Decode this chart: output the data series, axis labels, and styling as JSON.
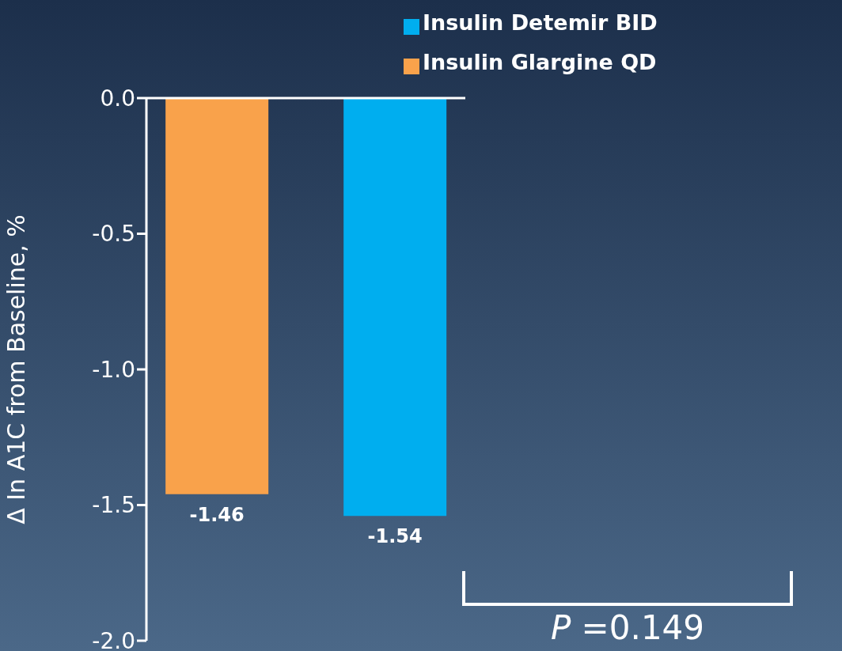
{
  "chart_data": {
    "type": "bar",
    "ylabel": "Δ In A1C from Baseline, %",
    "categories": [
      null
    ],
    "series": [
      {
        "name": "Insulin Glargine QD",
        "color": "#f9a24b",
        "values": [
          -1.46
        ]
      },
      {
        "name": "Insulin Detemir BID",
        "color": "#00aeef",
        "values": [
          -1.54
        ]
      }
    ],
    "ylim": [
      -2,
      0
    ],
    "yticks": [
      {
        "value": 0,
        "label": "0.0"
      },
      {
        "value": -0.5,
        "label": "-0.5"
      },
      {
        "value": -1,
        "label": "-1.0"
      },
      {
        "value": -1.5,
        "label": "-1.5"
      },
      {
        "value": -2,
        "label": "-2.0"
      }
    ],
    "data_labels": true,
    "grid": false,
    "legend": "top right",
    "annotations": [
      "P =0.149"
    ]
  }
}
